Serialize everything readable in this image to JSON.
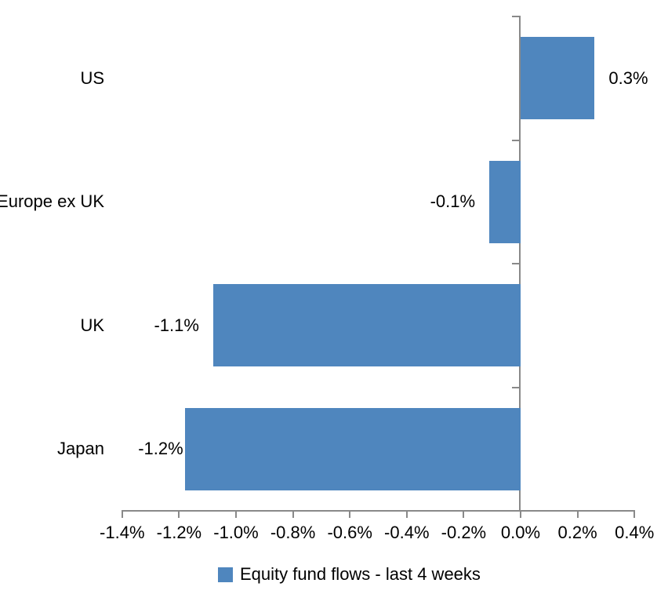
{
  "chart_data": {
    "type": "bar",
    "orientation": "horizontal",
    "title": "",
    "xlabel": "",
    "ylabel": "",
    "categories": [
      "US",
      "Europe ex UK",
      "UK",
      "Japan"
    ],
    "series": [
      {
        "name": "Equity fund flows - last 4 weeks",
        "values": [
          0.3,
          -0.1,
          -1.1,
          -1.2
        ],
        "values_precise_pct": [
          0.26,
          -0.11,
          -1.08,
          -1.18
        ],
        "data_labels": [
          "0.3%",
          "-0.1%",
          "-1.1%",
          "-1.2%"
        ]
      }
    ],
    "x_axis": {
      "min": -1.4,
      "max": 0.4,
      "step": 0.2,
      "tick_labels": [
        "-1.4%",
        "-1.2%",
        "-1.0%",
        "-0.8%",
        "-0.6%",
        "-0.4%",
        "-0.2%",
        "0.0%",
        "0.2%",
        "0.4%"
      ]
    },
    "grid": false,
    "legend": {
      "position": "bottom",
      "entries": [
        "Equity fund flows - last 4 weeks"
      ]
    },
    "colors": {
      "bar": "#4F86BE",
      "axis": "#898989",
      "text": "#000000",
      "background": "#FFFFFF"
    }
  }
}
